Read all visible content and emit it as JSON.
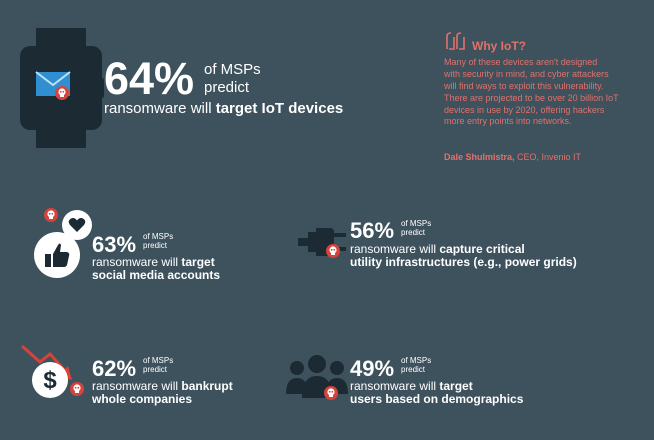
{
  "hero": {
    "percent": "64%",
    "of_msps": "of MSPs",
    "predict": "predict",
    "desc_prefix": "ransomware will ",
    "desc_bold": "target IoT devices"
  },
  "quote": {
    "title": "Why IoT?",
    "lines": [
      "Many of these devices aren't designed",
      "with security in mind, and cyber attackers",
      "will find ways to exploit this vulnerability.",
      "There are projected to be over 20 billion IoT",
      "devices in use by 2020, offering hackers",
      "more entry points into networks."
    ],
    "author": "Dale Shulmistra,",
    "role": " CEO, Invenio IT"
  },
  "stats": [
    {
      "percent": "63%",
      "of_msps": "of MSPs",
      "predict": "predict",
      "prefix": "ransomware will ",
      "bold1": "target",
      "bold2": "social media accounts"
    },
    {
      "percent": "56%",
      "of_msps": "of MSPs",
      "predict": "predict",
      "prefix": "ransomware will ",
      "bold1": "capture critical",
      "bold2": "utility infrastructures (e.g., power grids)"
    },
    {
      "percent": "62%",
      "of_msps": "of MSPs",
      "predict": "predict",
      "prefix": "ransomware will ",
      "bold1": "bankrupt",
      "bold2": "whole companies"
    },
    {
      "percent": "49%",
      "of_msps": "of MSPs",
      "predict": "predict",
      "prefix": "ransomware will ",
      "bold1": "target",
      "bold2": "users based on demographics"
    }
  ],
  "colors": {
    "background": "#3e525e",
    "icon_dark": "#1c2a33",
    "accent_red": "#e2706a",
    "skull_red": "#d6433b",
    "mail_blue": "#2f8fd1"
  }
}
